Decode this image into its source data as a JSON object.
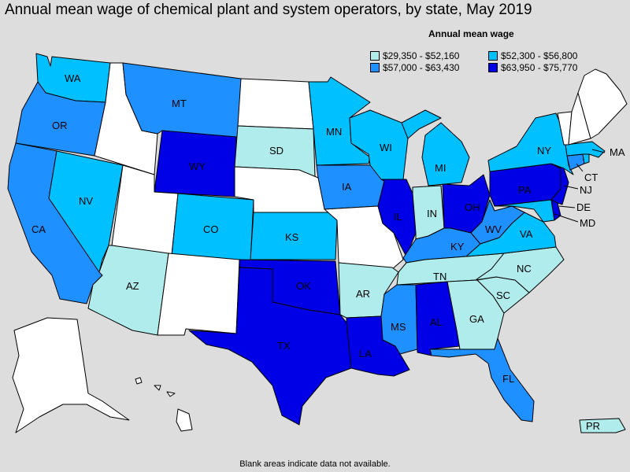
{
  "title": "Annual mean wage of chemical plant and system operators, by state, May 2019",
  "legend": {
    "title": "Annual mean wage",
    "ranges": [
      {
        "label": "$29,350 - $52,160",
        "color": "#b0ecec"
      },
      {
        "label": "$52,300 - $56,800",
        "color": "#00c0ff"
      },
      {
        "label": "$57,000 - $63,430",
        "color": "#1e90ff"
      },
      {
        "label": "$63,950 - $75,770",
        "color": "#0000e6"
      }
    ]
  },
  "footnote": "Blank areas indicate data not available.",
  "no_data_color": "#ffffff",
  "states": [
    {
      "abbr": "WA",
      "tier": 1
    },
    {
      "abbr": "OR",
      "tier": 2
    },
    {
      "abbr": "CA",
      "tier": 2
    },
    {
      "abbr": "NV",
      "tier": 1
    },
    {
      "abbr": "AZ",
      "tier": 0
    },
    {
      "abbr": "MT",
      "tier": 2
    },
    {
      "abbr": "WY",
      "tier": 3
    },
    {
      "abbr": "CO",
      "tier": 1
    },
    {
      "abbr": "SD",
      "tier": 0
    },
    {
      "abbr": "KS",
      "tier": 1
    },
    {
      "abbr": "OK",
      "tier": 3
    },
    {
      "abbr": "TX",
      "tier": 3
    },
    {
      "abbr": "MN",
      "tier": 1
    },
    {
      "abbr": "IA",
      "tier": 2
    },
    {
      "abbr": "AR",
      "tier": 0
    },
    {
      "abbr": "LA",
      "tier": 3
    },
    {
      "abbr": "WI",
      "tier": 1
    },
    {
      "abbr": "IL",
      "tier": 3
    },
    {
      "abbr": "MS",
      "tier": 2
    },
    {
      "abbr": "MI",
      "tier": 1
    },
    {
      "abbr": "IN",
      "tier": 0
    },
    {
      "abbr": "KY",
      "tier": 2
    },
    {
      "abbr": "TN",
      "tier": 0
    },
    {
      "abbr": "AL",
      "tier": 3
    },
    {
      "abbr": "OH",
      "tier": 3
    },
    {
      "abbr": "WV",
      "tier": 2
    },
    {
      "abbr": "GA",
      "tier": 0
    },
    {
      "abbr": "FL",
      "tier": 2
    },
    {
      "abbr": "SC",
      "tier": 0
    },
    {
      "abbr": "NC",
      "tier": 0
    },
    {
      "abbr": "VA",
      "tier": 1
    },
    {
      "abbr": "PA",
      "tier": 3
    },
    {
      "abbr": "NY",
      "tier": 1
    },
    {
      "abbr": "MD",
      "tier": 1
    },
    {
      "abbr": "DE",
      "tier": 3
    },
    {
      "abbr": "NJ",
      "tier": 3
    },
    {
      "abbr": "CT",
      "tier": 2
    },
    {
      "abbr": "MA",
      "tier": 1
    },
    {
      "abbr": "PR",
      "tier": 0
    },
    {
      "abbr": "ID",
      "tier": null
    },
    {
      "abbr": "UT",
      "tier": null
    },
    {
      "abbr": "NM",
      "tier": null
    },
    {
      "abbr": "ND",
      "tier": null
    },
    {
      "abbr": "NE",
      "tier": null
    },
    {
      "abbr": "MO",
      "tier": null
    },
    {
      "abbr": "ME",
      "tier": null
    },
    {
      "abbr": "VT",
      "tier": null
    },
    {
      "abbr": "NH",
      "tier": null
    },
    {
      "abbr": "RI",
      "tier": 1
    },
    {
      "abbr": "AK",
      "tier": null
    },
    {
      "abbr": "HI",
      "tier": null
    }
  ]
}
